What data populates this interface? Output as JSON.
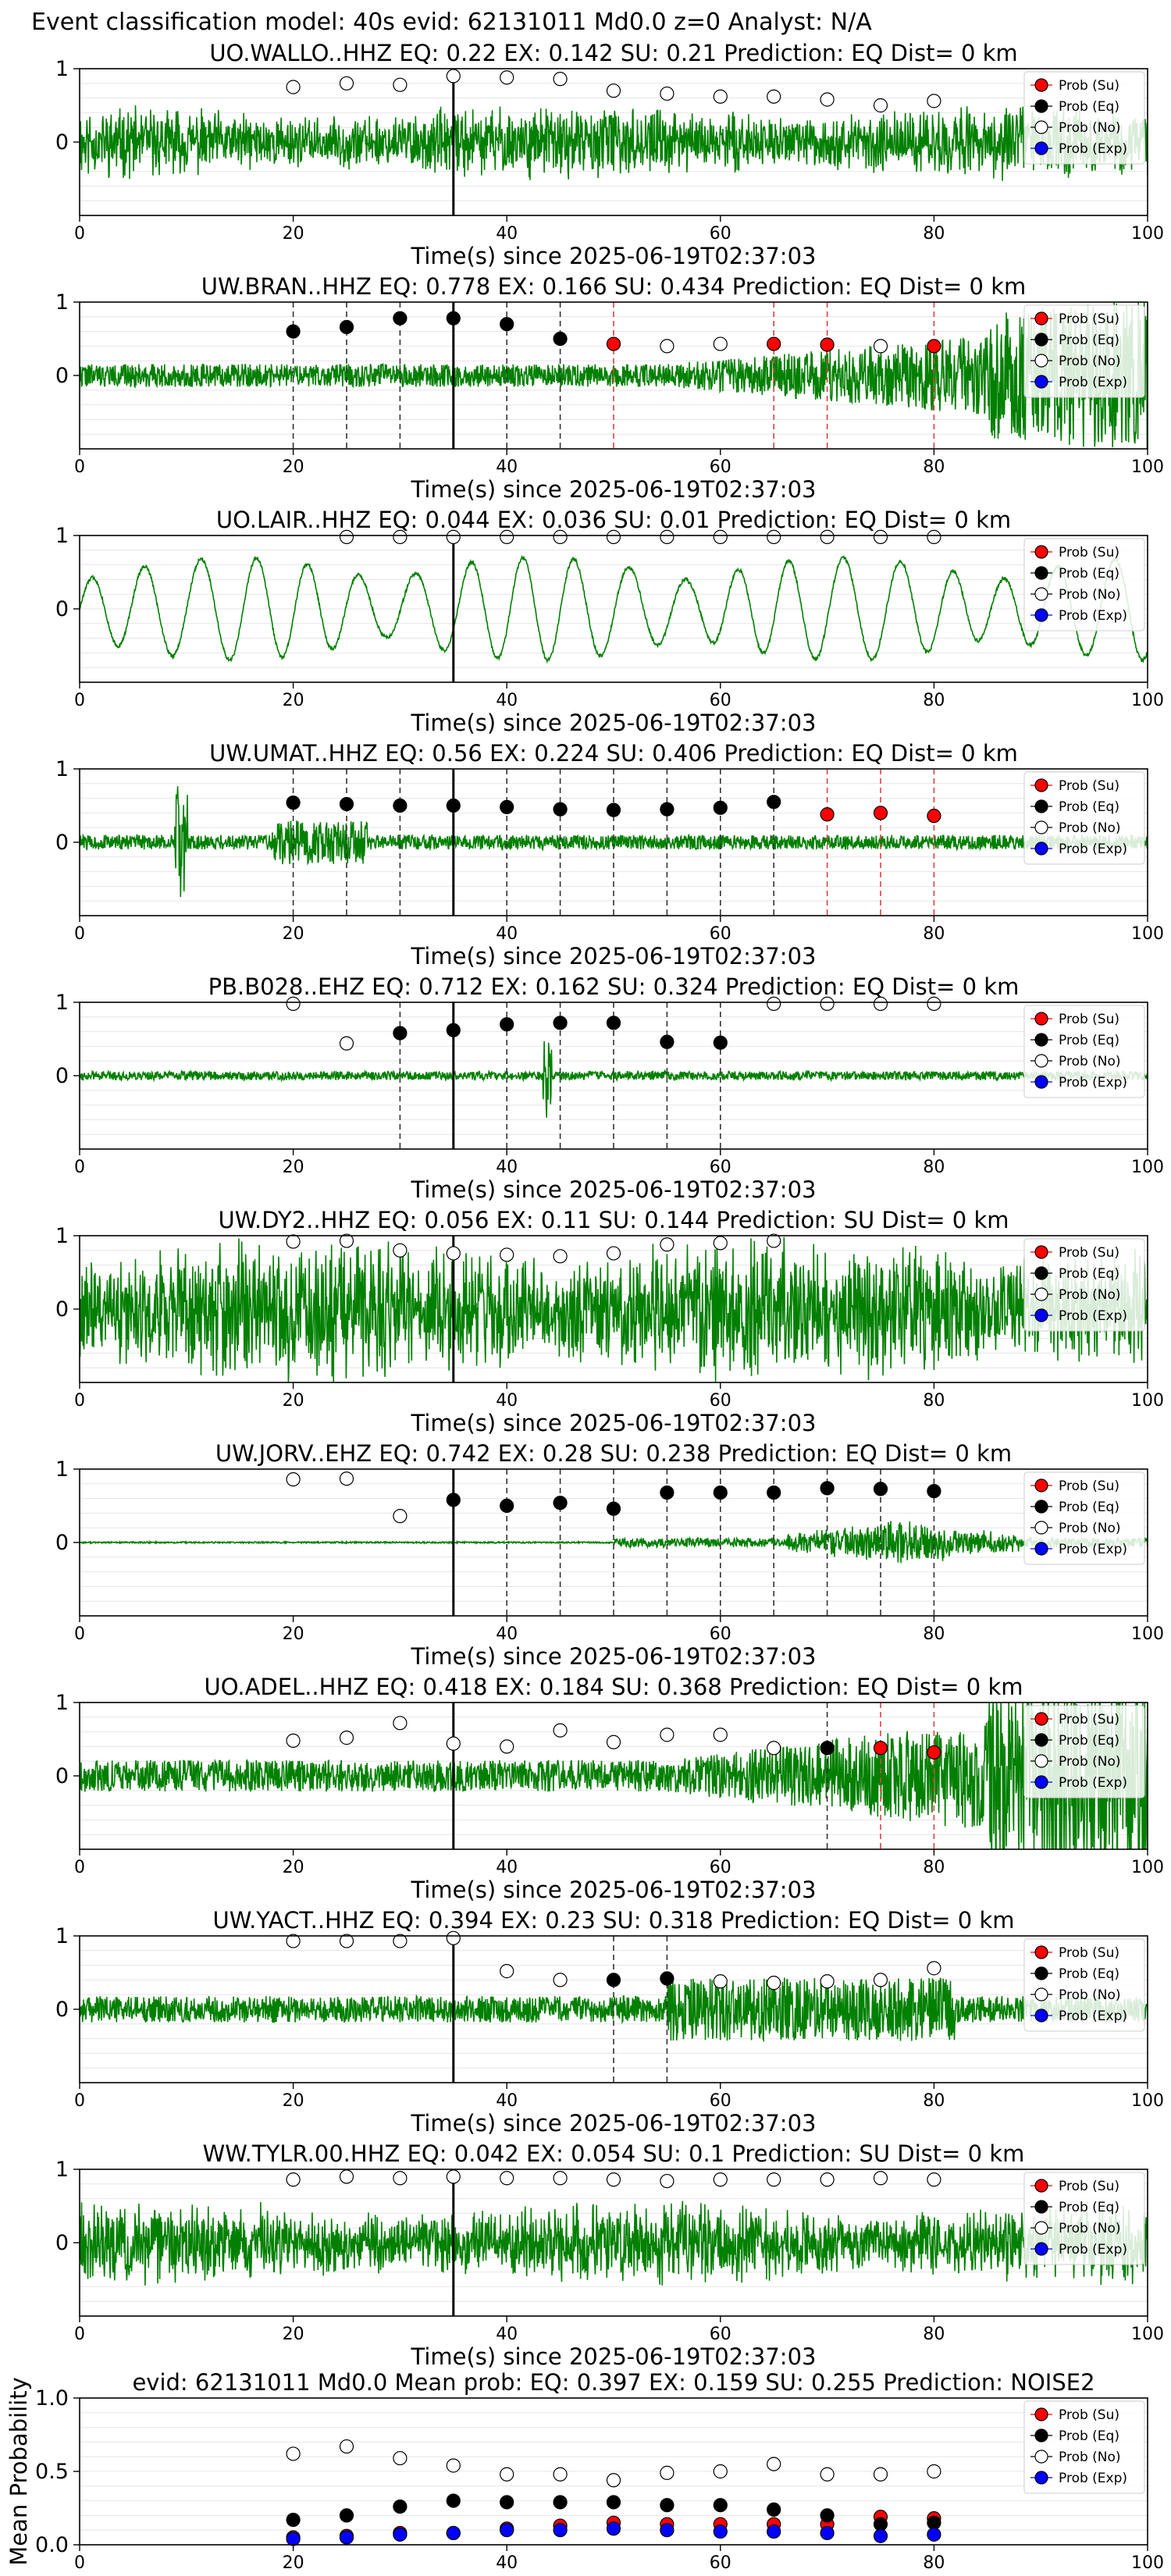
{
  "suptitle": "Event classification model: 40s evid: 62131011 Md0.0 z=0 Analyst: N/A",
  "colors": {
    "waveform": "#008000",
    "su": "#ff0000",
    "eq": "#000000",
    "no": "#ffffff",
    "exp": "#0000ff",
    "red_line": "#e04040",
    "pick_line": "#000000",
    "grid": "#e6e6e6"
  },
  "legend": [
    "Prob (Su)",
    "Prob (Eq)",
    "Prob (No)",
    "Prob (Exp)"
  ],
  "chart_data": [
    {
      "type": "line",
      "title": "UO.WALLO..HHZ   EQ: 0.22   EX: 0.142   SU: 0.21    Prediction: EQ    Dist= 0 km",
      "xlabel": "Time(s) since 2025-06-19T02:37:03",
      "xlim": [
        0,
        100
      ],
      "ylim": [
        -1,
        1
      ],
      "xticks": [
        0,
        20,
        40,
        60,
        80,
        100
      ],
      "yticks": [
        0,
        1
      ],
      "legend_position": "right",
      "wave": {
        "amp": 0.28,
        "kind": "noise",
        "seed": 11
      },
      "pick": 35,
      "eq_lines": [],
      "su_lines": [],
      "series": [
        {
          "name": "Prob (Su)",
          "x": [],
          "y": []
        },
        {
          "name": "Prob (Eq)",
          "x": [],
          "y": []
        },
        {
          "name": "Prob (No)",
          "x": [
            20,
            25,
            30,
            35,
            40,
            45,
            50,
            55,
            60,
            65,
            70,
            75,
            80
          ],
          "y": [
            0.75,
            0.8,
            0.78,
            0.9,
            0.88,
            0.86,
            0.7,
            0.66,
            0.62,
            0.62,
            0.58,
            0.5,
            0.56
          ]
        },
        {
          "name": "Prob (Exp)",
          "x": [],
          "y": []
        }
      ]
    },
    {
      "type": "line",
      "title": "UW.BRAN..HHZ   EQ: 0.778   EX: 0.166   SU: 0.434    Prediction: EQ    Dist= 0 km",
      "xlabel": "Time(s) since 2025-06-19T02:37:03",
      "xlim": [
        0,
        100
      ],
      "ylim": [
        -1,
        1
      ],
      "xticks": [
        0,
        20,
        40,
        60,
        80,
        100
      ],
      "yticks": [
        0,
        1
      ],
      "legend_position": "right",
      "wave": {
        "amp": 0.26,
        "kind": "growing",
        "seed": 22
      },
      "pick": 35,
      "eq_lines": [
        20,
        25,
        30,
        35,
        40,
        45
      ],
      "su_lines": [
        50,
        65,
        70,
        80
      ],
      "series": [
        {
          "name": "Prob (Su)",
          "x": [
            50,
            65,
            70,
            80
          ],
          "y": [
            0.43,
            0.43,
            0.42,
            0.4
          ]
        },
        {
          "name": "Prob (Eq)",
          "x": [
            20,
            25,
            30,
            35,
            40,
            45
          ],
          "y": [
            0.6,
            0.66,
            0.78,
            0.78,
            0.7,
            0.5
          ]
        },
        {
          "name": "Prob (No)",
          "x": [
            55,
            60,
            75
          ],
          "y": [
            0.4,
            0.43,
            0.4
          ]
        },
        {
          "name": "Prob (Exp)",
          "x": [],
          "y": []
        }
      ]
    },
    {
      "type": "line",
      "title": "UO.LAIR..HHZ   EQ: 0.044   EX: 0.036   SU: 0.01    Prediction: EQ    Dist= 0 km",
      "xlabel": "Time(s) since 2025-06-19T02:37:03",
      "xlim": [
        0,
        100
      ],
      "ylim": [
        -1,
        1
      ],
      "xticks": [
        0,
        20,
        40,
        60,
        80,
        100
      ],
      "yticks": [
        0,
        1
      ],
      "legend_position": "right",
      "wave": {
        "amp": 0.7,
        "kind": "sine",
        "seed": 33
      },
      "pick": 35,
      "eq_lines": [],
      "su_lines": [],
      "series": [
        {
          "name": "Prob (Su)",
          "x": [],
          "y": []
        },
        {
          "name": "Prob (Eq)",
          "x": [],
          "y": []
        },
        {
          "name": "Prob (No)",
          "x": [
            25,
            30,
            35,
            40,
            45,
            50,
            55,
            60,
            65,
            70,
            75,
            80
          ],
          "y": [
            0.98,
            0.98,
            0.98,
            0.98,
            0.98,
            0.98,
            0.98,
            0.98,
            0.98,
            0.98,
            0.98,
            0.98
          ]
        },
        {
          "name": "Prob (Exp)",
          "x": [],
          "y": []
        }
      ]
    },
    {
      "type": "line",
      "title": "UW.UMAT..HHZ   EQ: 0.56   EX: 0.224   SU: 0.406    Prediction: EQ    Dist= 0 km",
      "xlabel": "Time(s) since 2025-06-19T02:37:03",
      "xlim": [
        0,
        100
      ],
      "ylim": [
        -1,
        1
      ],
      "xticks": [
        0,
        20,
        40,
        60,
        80,
        100
      ],
      "yticks": [
        0,
        1
      ],
      "legend_position": "right",
      "wave": {
        "amp": 0.1,
        "kind": "quiet_spike",
        "seed": 44
      },
      "pick": 35,
      "eq_lines": [
        20,
        25,
        30,
        40,
        45,
        50,
        55,
        60,
        65
      ],
      "su_lines": [
        70,
        75,
        80
      ],
      "series": [
        {
          "name": "Prob (Su)",
          "x": [
            70,
            75,
            80
          ],
          "y": [
            0.38,
            0.4,
            0.36
          ]
        },
        {
          "name": "Prob (Eq)",
          "x": [
            20,
            25,
            30,
            35,
            40,
            45,
            50,
            55,
            60,
            65
          ],
          "y": [
            0.54,
            0.52,
            0.5,
            0.5,
            0.48,
            0.45,
            0.44,
            0.45,
            0.47,
            0.55
          ]
        },
        {
          "name": "Prob (No)",
          "x": [],
          "y": []
        },
        {
          "name": "Prob (Exp)",
          "x": [],
          "y": []
        }
      ]
    },
    {
      "type": "line",
      "title": "PB.B028..EHZ   EQ: 0.712   EX: 0.162   SU: 0.324    Prediction: EQ    Dist= 0 km",
      "xlabel": "Time(s) since 2025-06-19T02:37:03",
      "xlim": [
        0,
        100
      ],
      "ylim": [
        -1,
        1
      ],
      "xticks": [
        0,
        20,
        40,
        60,
        80,
        100
      ],
      "yticks": [
        0,
        1
      ],
      "legend_position": "right",
      "wave": {
        "amp": 0.06,
        "kind": "quiet_spike2",
        "seed": 55
      },
      "pick": 35,
      "eq_lines": [
        30,
        35,
        40,
        45,
        50,
        55,
        60
      ],
      "su_lines": [],
      "series": [
        {
          "name": "Prob (Su)",
          "x": [],
          "y": []
        },
        {
          "name": "Prob (Eq)",
          "x": [
            30,
            35,
            40,
            45,
            50,
            55,
            60
          ],
          "y": [
            0.58,
            0.62,
            0.7,
            0.72,
            0.72,
            0.46,
            0.45
          ]
        },
        {
          "name": "Prob (No)",
          "x": [
            20,
            25,
            65,
            70,
            75,
            80
          ],
          "y": [
            0.98,
            0.44,
            0.98,
            0.98,
            0.98,
            0.98
          ]
        },
        {
          "name": "Prob (Exp)",
          "x": [],
          "y": []
        }
      ]
    },
    {
      "type": "line",
      "title": "UW.DY2..HHZ   EQ: 0.056   EX: 0.11   SU: 0.144    Prediction: SU    Dist= 0 km",
      "xlabel": "Time(s) since 2025-06-19T02:37:03",
      "xlim": [
        0,
        100
      ],
      "ylim": [
        -1,
        1
      ],
      "xticks": [
        0,
        20,
        40,
        60,
        80,
        100
      ],
      "yticks": [
        0,
        1
      ],
      "legend_position": "right",
      "wave": {
        "amp": 0.55,
        "kind": "noise",
        "seed": 66
      },
      "pick": 35,
      "eq_lines": [],
      "su_lines": [],
      "series": [
        {
          "name": "Prob (Su)",
          "x": [],
          "y": []
        },
        {
          "name": "Prob (Eq)",
          "x": [],
          "y": []
        },
        {
          "name": "Prob (No)",
          "x": [
            20,
            25,
            30,
            35,
            40,
            45,
            50,
            55,
            60,
            65
          ],
          "y": [
            0.92,
            0.93,
            0.8,
            0.76,
            0.74,
            0.72,
            0.76,
            0.88,
            0.9,
            0.93
          ]
        },
        {
          "name": "Prob (Exp)",
          "x": [],
          "y": []
        }
      ]
    },
    {
      "type": "line",
      "title": "UW.JORV..EHZ   EQ: 0.742   EX: 0.28   SU: 0.238    Prediction: EQ    Dist= 0 km",
      "xlabel": "Time(s) since 2025-06-19T02:37:03",
      "xlim": [
        0,
        100
      ],
      "ylim": [
        -1,
        1
      ],
      "xticks": [
        0,
        20,
        40,
        60,
        80,
        100
      ],
      "yticks": [
        0,
        1
      ],
      "legend_position": "right",
      "wave": {
        "amp": 0.02,
        "kind": "late_event",
        "seed": 77
      },
      "pick": 35,
      "eq_lines": [
        40,
        45,
        50,
        55,
        60,
        65,
        70,
        75,
        80
      ],
      "su_lines": [],
      "series": [
        {
          "name": "Prob (Su)",
          "x": [],
          "y": []
        },
        {
          "name": "Prob (Eq)",
          "x": [
            35,
            40,
            45,
            50,
            55,
            60,
            65,
            70,
            75,
            80
          ],
          "y": [
            0.58,
            0.5,
            0.54,
            0.46,
            0.68,
            0.68,
            0.68,
            0.74,
            0.73,
            0.7
          ]
        },
        {
          "name": "Prob (No)",
          "x": [
            20,
            25,
            30
          ],
          "y": [
            0.86,
            0.87,
            0.36
          ]
        },
        {
          "name": "Prob (Exp)",
          "x": [],
          "y": []
        }
      ]
    },
    {
      "type": "line",
      "title": "UO.ADEL..HHZ   EQ: 0.418   EX: 0.184   SU: 0.368    Prediction: EQ    Dist= 0 km",
      "xlabel": "Time(s) since 2025-06-19T02:37:03",
      "xlim": [
        0,
        100
      ],
      "ylim": [
        -1,
        1
      ],
      "xticks": [
        0,
        20,
        40,
        60,
        80,
        100
      ],
      "yticks": [
        0,
        1
      ],
      "legend_position": "right",
      "wave": {
        "amp": 0.36,
        "kind": "growing",
        "seed": 88
      },
      "pick": 35,
      "eq_lines": [
        70
      ],
      "su_lines": [
        75,
        80
      ],
      "series": [
        {
          "name": "Prob (Su)",
          "x": [
            75,
            80
          ],
          "y": [
            0.38,
            0.32
          ]
        },
        {
          "name": "Prob (Eq)",
          "x": [
            70
          ],
          "y": [
            0.38
          ]
        },
        {
          "name": "Prob (No)",
          "x": [
            20,
            25,
            30,
            35,
            40,
            45,
            50,
            55,
            60,
            65
          ],
          "y": [
            0.48,
            0.52,
            0.72,
            0.44,
            0.4,
            0.62,
            0.46,
            0.56,
            0.56,
            0.38
          ]
        },
        {
          "name": "Prob (Exp)",
          "x": [],
          "y": []
        }
      ]
    },
    {
      "type": "line",
      "title": "UW.YACT..HHZ   EQ: 0.394   EX: 0.23   SU: 0.318    Prediction: EQ    Dist= 0 km",
      "xlabel": "Time(s) since 2025-06-19T02:37:03",
      "xlim": [
        0,
        100
      ],
      "ylim": [
        -1,
        1
      ],
      "xticks": [
        0,
        20,
        40,
        60,
        80,
        100
      ],
      "yticks": [
        0,
        1
      ],
      "legend_position": "right",
      "wave": {
        "amp": 0.18,
        "kind": "mid_event",
        "seed": 99
      },
      "pick": 35,
      "eq_lines": [
        50,
        55
      ],
      "su_lines": [],
      "series": [
        {
          "name": "Prob (Su)",
          "x": [],
          "y": []
        },
        {
          "name": "Prob (Eq)",
          "x": [
            50,
            55
          ],
          "y": [
            0.4,
            0.42
          ]
        },
        {
          "name": "Prob (No)",
          "x": [
            20,
            25,
            30,
            35,
            40,
            45,
            60,
            65,
            70,
            75,
            80
          ],
          "y": [
            0.93,
            0.93,
            0.93,
            0.97,
            0.52,
            0.4,
            0.38,
            0.36,
            0.38,
            0.4,
            0.56
          ]
        },
        {
          "name": "Prob (Exp)",
          "x": [],
          "y": []
        }
      ]
    },
    {
      "type": "line",
      "title": "WW.TYLR.00.HHZ   EQ: 0.042   EX: 0.054   SU: 0.1    Prediction: SU    Dist= 0 km",
      "xlabel": "Time(s) since 2025-06-19T02:37:03",
      "xlim": [
        0,
        100
      ],
      "ylim": [
        -1,
        1
      ],
      "xticks": [
        0,
        20,
        40,
        60,
        80,
        100
      ],
      "yticks": [
        0,
        1
      ],
      "legend_position": "right",
      "wave": {
        "amp": 0.32,
        "kind": "noise",
        "seed": 111
      },
      "pick": 35,
      "eq_lines": [],
      "su_lines": [],
      "series": [
        {
          "name": "Prob (Su)",
          "x": [],
          "y": []
        },
        {
          "name": "Prob (Eq)",
          "x": [],
          "y": []
        },
        {
          "name": "Prob (No)",
          "x": [
            20,
            25,
            30,
            35,
            40,
            45,
            50,
            55,
            60,
            65,
            70,
            75,
            80
          ],
          "y": [
            0.86,
            0.9,
            0.88,
            0.9,
            0.88,
            0.88,
            0.86,
            0.84,
            0.86,
            0.86,
            0.86,
            0.88,
            0.86
          ]
        },
        {
          "name": "Prob (Exp)",
          "x": [],
          "y": []
        }
      ]
    },
    {
      "type": "scatter",
      "title": "evid: 62131011  Md0.0   Mean prob:   EQ: 0.397   EX: 0.159   SU: 0.255   Prediction: NOISE2",
      "xlabel": "",
      "ylabel": "Mean Probability",
      "xlim": [
        0,
        100
      ],
      "ylim": [
        0,
        1
      ],
      "xticks": [
        0,
        20,
        40,
        60,
        80,
        100
      ],
      "yticks": [
        0.0,
        0.5,
        1.0
      ],
      "legend_position": "right",
      "series": [
        {
          "name": "Prob (Su)",
          "x": [
            20,
            25,
            30,
            35,
            40,
            45,
            50,
            55,
            60,
            65,
            70,
            75,
            80
          ],
          "y": [
            0.05,
            0.06,
            0.08,
            0.08,
            0.11,
            0.13,
            0.15,
            0.14,
            0.14,
            0.14,
            0.14,
            0.19,
            0.18
          ]
        },
        {
          "name": "Prob (Eq)",
          "x": [
            20,
            25,
            30,
            35,
            40,
            45,
            50,
            55,
            60,
            65,
            70,
            75,
            80
          ],
          "y": [
            0.17,
            0.2,
            0.26,
            0.3,
            0.29,
            0.29,
            0.29,
            0.27,
            0.27,
            0.24,
            0.2,
            0.14,
            0.15
          ]
        },
        {
          "name": "Prob (No)",
          "x": [
            20,
            25,
            30,
            35,
            40,
            45,
            50,
            55,
            60,
            65,
            70,
            75,
            80
          ],
          "y": [
            0.62,
            0.67,
            0.59,
            0.54,
            0.48,
            0.48,
            0.44,
            0.49,
            0.5,
            0.55,
            0.48,
            0.48,
            0.5
          ]
        },
        {
          "name": "Prob (Exp)",
          "x": [
            20,
            25,
            30,
            35,
            40,
            45,
            50,
            55,
            60,
            65,
            70,
            75,
            80
          ],
          "y": [
            0.04,
            0.05,
            0.07,
            0.08,
            0.1,
            0.1,
            0.11,
            0.1,
            0.09,
            0.09,
            0.08,
            0.06,
            0.07
          ]
        }
      ]
    }
  ]
}
